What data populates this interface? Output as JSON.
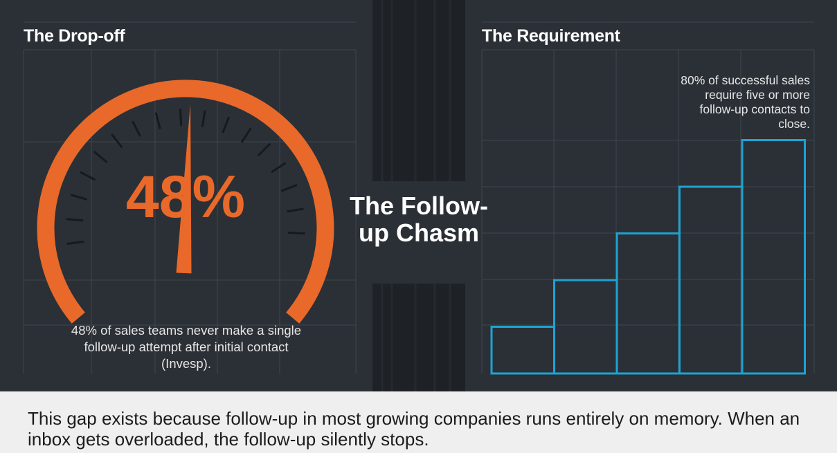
{
  "center_title": "The Follow-up Chasm",
  "footer": {
    "text": "This gap exists because follow-up in most growing companies runs entirely on memory. When an inbox gets overloaded, the follow-up silently stops."
  },
  "colors": {
    "background": "#2b3036",
    "chasm": "#1e2227",
    "gauge_orange": "#e8692a",
    "step_blue": "#1ea3d2",
    "footer_bg": "#efefef"
  },
  "chart_data": [
    {
      "type": "gauge",
      "title": "The Drop-off",
      "value": 48,
      "value_label": "48%",
      "min": 0,
      "max": 100,
      "caption": "48% of sales teams never make a single follow-up attempt after initial contact (Invesp).",
      "grid": true
    },
    {
      "type": "bar",
      "title": "The Requirement",
      "style": "step",
      "values": [
        1,
        2,
        3,
        4,
        5
      ],
      "ylim": [
        0,
        5
      ],
      "caption": "80% of successful sales require five or more follow-up contacts to close.",
      "grid": true
    }
  ]
}
